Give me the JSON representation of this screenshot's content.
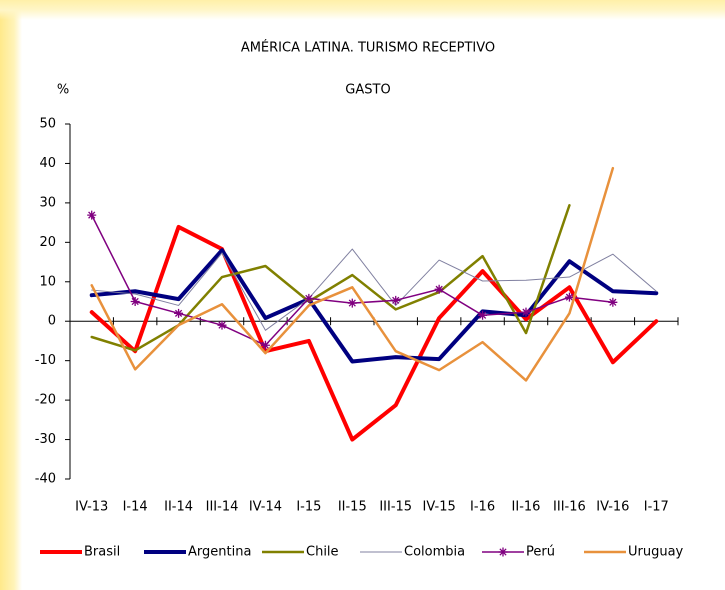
{
  "chart_data": {
    "type": "line",
    "title": "AMÉRICA LATINA. TURISMO RECEPTIVO",
    "subtitle": "GASTO",
    "y_label": "%",
    "categories": [
      "IV-13",
      "I-14",
      "II-14",
      "III-14",
      "IV-14",
      "I-15",
      "II-15",
      "III-15",
      "IV-15",
      "I-16",
      "II-16",
      "III-16",
      "IV-16",
      "I-17"
    ],
    "ylim": [
      -40,
      50
    ],
    "yticks": [
      -40,
      -30,
      -20,
      -10,
      0,
      10,
      20,
      30,
      40,
      50
    ],
    "series": [
      {
        "name": "Brasil",
        "color": "#ff0000",
        "line_width": 4,
        "values": [
          2.3,
          -7.6,
          23.9,
          18.3,
          -7.6,
          -5,
          -30,
          -21.3,
          0.8,
          12.7,
          0.5,
          8.6,
          -10.4,
          0
        ]
      },
      {
        "name": "Argentina",
        "color": "#000080",
        "line_width": 4,
        "values": [
          6.6,
          7.6,
          5.6,
          18,
          0.8,
          5.6,
          -10.2,
          -9.1,
          -9.6,
          2.5,
          1.5,
          15.2,
          7.6,
          7.1
        ]
      },
      {
        "name": "Chile",
        "color": "#808000",
        "line_width": 2.5,
        "values": [
          -4,
          -7.4,
          -1,
          11.2,
          14,
          5,
          11.7,
          3,
          7.4,
          16.5,
          -3,
          29.4,
          null,
          null
        ]
      },
      {
        "name": "Colombia",
        "color": "#8080a0",
        "line_width": 1,
        "values": [
          7.9,
          6.9,
          4,
          17.3,
          -2.3,
          5.8,
          18.3,
          4,
          15.5,
          10.2,
          10.4,
          11.2,
          17,
          7.6
        ]
      },
      {
        "name": "Perú",
        "color": "#800080",
        "line_width": 1.5,
        "marker": "star",
        "values": [
          26.9,
          5,
          2,
          -1,
          -6.1,
          5.8,
          4.6,
          5.3,
          8.1,
          1.5,
          2.3,
          6.1,
          4.8,
          null
        ]
      },
      {
        "name": "Uruguay",
        "color": "#e8913c",
        "line_width": 2.5,
        "values": [
          9.1,
          -12.2,
          -1,
          4.3,
          -8.1,
          4,
          8.6,
          -7.6,
          -12.4,
          -5.3,
          -15,
          2,
          38.8,
          null
        ]
      }
    ]
  }
}
